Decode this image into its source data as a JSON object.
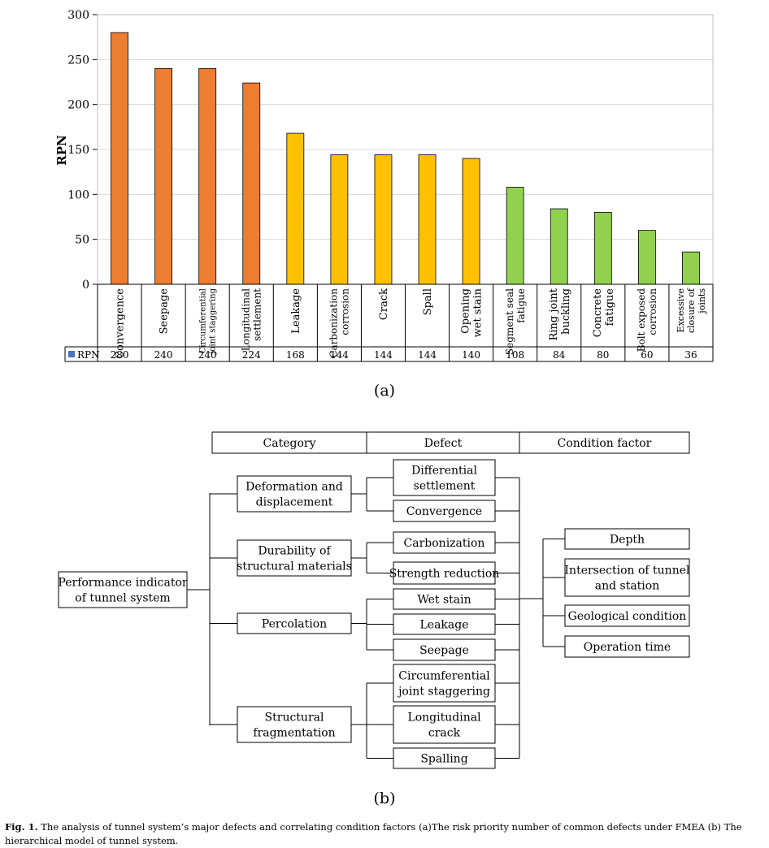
{
  "chart_data": {
    "type": "bar",
    "ylabel": "RPN",
    "ylim": [
      0,
      300
    ],
    "yticks": [
      0,
      50,
      100,
      150,
      200,
      250,
      300
    ],
    "grid": true,
    "legend": "table-row",
    "categories": [
      [
        "Convergence"
      ],
      [
        "Seepage"
      ],
      [
        "Circumferential",
        "joint staggering"
      ],
      [
        "Longitudinal",
        "settlement"
      ],
      [
        "Leakage"
      ],
      [
        "Carbonization",
        "corrosion"
      ],
      [
        "Crack"
      ],
      [
        "Spall"
      ],
      [
        "Opening",
        "wet stain"
      ],
      [
        "Segment seal",
        "fatigue"
      ],
      [
        "Ring joint",
        "buckling"
      ],
      [
        "Concrete",
        "fatigue"
      ],
      [
        "Bolt exposed",
        "corrosion"
      ],
      [
        "Excessive",
        "closure of",
        "joints"
      ]
    ],
    "series": [
      {
        "name": "RPN",
        "values": [
          280,
          240,
          240,
          224,
          168,
          144,
          144,
          144,
          140,
          108,
          84,
          80,
          60,
          36
        ]
      }
    ],
    "bar_colors": [
      "#ED7D31",
      "#ED7D31",
      "#ED7D31",
      "#ED7D31",
      "#FFC000",
      "#FFC000",
      "#FFC000",
      "#FFC000",
      "#FFC000",
      "#92D050",
      "#92D050",
      "#92D050",
      "#92D050",
      "#92D050"
    ],
    "legend_color": "#4472C4"
  },
  "figure": {
    "label_a": "(a)",
    "label_b": "(b)",
    "caption_bold": "Fig. 1.",
    "caption_text": " The analysis of tunnel system’s major defects and correlating condition factors (a)The risk priority number of common defects under FMEA (b) The hierarchical model of tunnel system."
  },
  "diagram": {
    "headers": [
      "Category",
      "Defect",
      "Condition factor"
    ],
    "root": [
      "Performance indicator",
      "of tunnel system"
    ],
    "categories": [
      [
        "Deformation and",
        "displacement"
      ],
      [
        "Durability of",
        "structural materials"
      ],
      [
        "Percolation"
      ],
      [
        "Structural",
        "fragmentation"
      ]
    ],
    "defects": [
      [
        "Differential",
        "settlement"
      ],
      [
        "Convergence"
      ],
      [
        "Carbonization"
      ],
      [
        "Strength reduction"
      ],
      [
        "Wet stain"
      ],
      [
        "Leakage"
      ],
      [
        "Seepage"
      ],
      [
        "Circumferential",
        "joint staggering"
      ],
      [
        "Longitudinal",
        "crack"
      ],
      [
        "Spalling"
      ]
    ],
    "conditions": [
      [
        "Depth"
      ],
      [
        "Intersection of tunnel",
        "and station"
      ],
      [
        "Geological condition"
      ],
      [
        "Operation time"
      ]
    ]
  }
}
